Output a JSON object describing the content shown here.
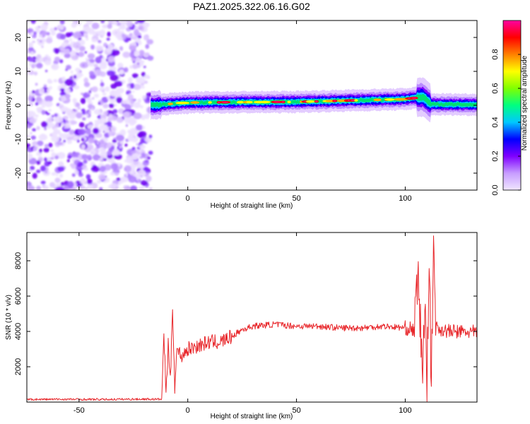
{
  "title": "PAZ1.2025.322.06.16.G02",
  "chart_data": [
    {
      "type": "heatmap",
      "subtype": "spectrogram",
      "xlabel": "Height of straight line (km)",
      "ylabel": "Frequency (Hz)",
      "xlim": [
        -74,
        133
      ],
      "ylim": [
        -25,
        25
      ],
      "xticks": [
        -50,
        0,
        50,
        100
      ],
      "xtick_labels": [
        "-50",
        "0",
        "50",
        "100"
      ],
      "yticks": [
        -20,
        -10,
        0,
        10,
        20
      ],
      "ytick_labels": [
        "-20",
        "-10",
        "0",
        "10",
        "20"
      ],
      "colorbar": {
        "label": "Normalized spectral amplitude",
        "range": [
          0,
          1
        ],
        "ticks": [
          0.0,
          0.2,
          0.4,
          0.6,
          0.8
        ],
        "tick_labels": [
          "0.0",
          "0.2",
          "0.4",
          "0.6",
          "0.8"
        ],
        "colormap": [
          "#f0e6ff",
          "#c79cff",
          "#7f00ff",
          "#0000ff",
          "#00c8ff",
          "#00ff80",
          "#80ff00",
          "#ffff00",
          "#ff8000",
          "#ff0000",
          "#ff00a0"
        ]
      },
      "noise_region_x": [
        -74,
        -17
      ],
      "signal_region_x": [
        -17,
        133
      ],
      "ridge": [
        {
          "x": -17,
          "y": 0.0
        },
        {
          "x": 0,
          "y": 0.8
        },
        {
          "x": 20,
          "y": 0.9
        },
        {
          "x": 50,
          "y": 1.0
        },
        {
          "x": 80,
          "y": 1.5
        },
        {
          "x": 100,
          "y": 1.8
        },
        {
          "x": 108,
          "y": 2.5
        },
        {
          "x": 112,
          "y": 0.3
        },
        {
          "x": 133,
          "y": 0.2
        }
      ]
    },
    {
      "type": "line",
      "xlabel": "Height of straight line (km)",
      "ylabel": "SNR (10 * v/v)",
      "xlim": [
        -74,
        133
      ],
      "ylim": [
        0,
        9600
      ],
      "xticks": [
        -50,
        0,
        50,
        100
      ],
      "xtick_labels": [
        "-50",
        "0",
        "50",
        "100"
      ],
      "yticks": [
        2000,
        4000,
        6000,
        8000
      ],
      "ytick_labels": [
        "2000",
        "4000",
        "6000",
        "8000"
      ],
      "series_color": "#e8262a",
      "x": [
        -74,
        -60,
        -40,
        -20,
        -12,
        -11,
        -10,
        -9,
        -8,
        -7,
        -6,
        -5,
        -3,
        0,
        5,
        10,
        15,
        20,
        25,
        30,
        40,
        50,
        60,
        70,
        80,
        90,
        100,
        104,
        106,
        108,
        109,
        110,
        111,
        112,
        113,
        114,
        120,
        133
      ],
      "values": [
        150,
        160,
        150,
        170,
        160,
        3800,
        600,
        3200,
        1100,
        5600,
        900,
        3000,
        2600,
        3000,
        3200,
        3400,
        3400,
        3700,
        4100,
        4300,
        4400,
        4300,
        4300,
        4200,
        4200,
        4300,
        4200,
        4100,
        7000,
        1500,
        5600,
        900,
        8900,
        500,
        9500,
        4200,
        4000,
        3950
      ]
    }
  ]
}
